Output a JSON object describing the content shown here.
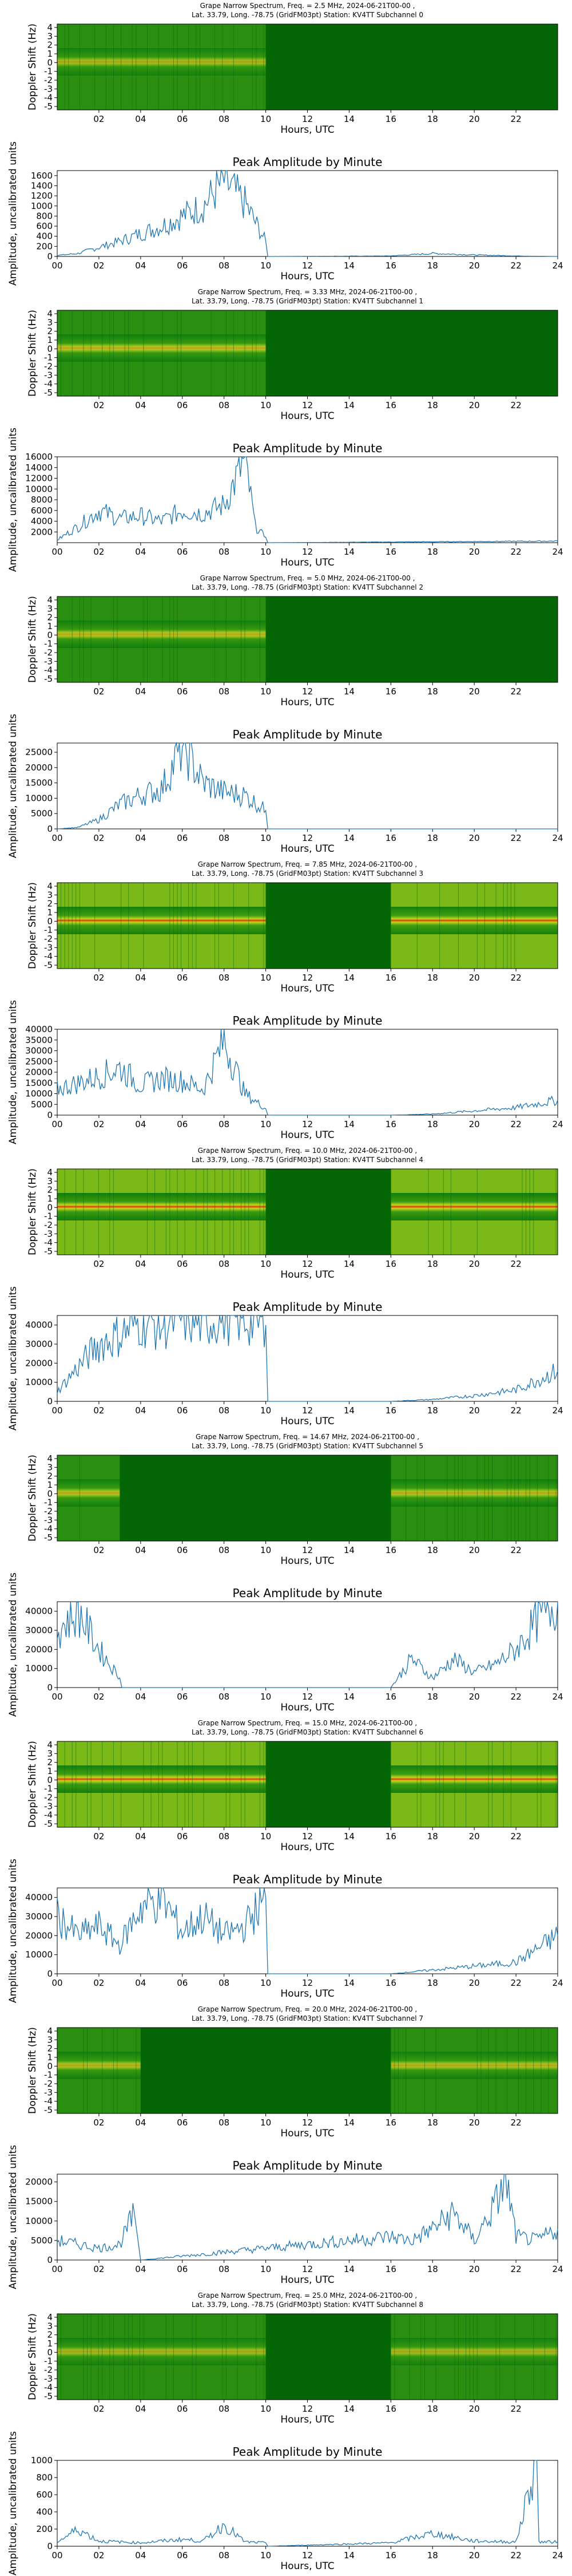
{
  "colors": {
    "line": "#1f77b4",
    "spec_bg": "#0b7a0b",
    "spec_dark": "#056605",
    "band": "#f0a020",
    "band_hot": "#e8340a"
  },
  "common": {
    "spec_title_line2": "Lat.  33.79, Long. -78.75 (GridFM03pt) Station: KV4TT Subchannel",
    "doppler_label": "Doppler Shift (Hz)",
    "hours_label": "Hours, UTC",
    "amp_title": "Peak Amplitude by Minute",
    "amp_ylabel": "Amplitude, uncalibrated units",
    "spec_xticks": [
      "02",
      "04",
      "06",
      "08",
      "10",
      "12",
      "14",
      "16",
      "18",
      "20",
      "22"
    ],
    "spec_yticks": [
      "4",
      "3",
      "2",
      "1",
      "0",
      "-1",
      "-2",
      "-3",
      "-4",
      "-5"
    ],
    "amp_xticks": [
      "00",
      "02",
      "04",
      "06",
      "08",
      "10",
      "12",
      "14",
      "16",
      "18",
      "20",
      "22",
      "24"
    ]
  },
  "chart_data": [
    {
      "type": "heatmap",
      "title": "Grape Narrow Spectrum, Freq. = 2.5 MHz, 2024-06-21T00-00 ,",
      "subchannel": "0",
      "band_intensity": 0.35,
      "dropout_hours": [
        10,
        24
      ],
      "ylim": [
        -5,
        5
      ],
      "xlim": [
        0,
        24
      ]
    },
    {
      "type": "line",
      "title": "Peak Amplitude by Minute",
      "ylim": [
        0,
        1700
      ],
      "yticks": [
        0,
        200,
        400,
        600,
        800,
        1000,
        1200,
        1400,
        1600
      ],
      "x": [
        0,
        1,
        2,
        3,
        4,
        5,
        6,
        7,
        8,
        9,
        10,
        10.1,
        16,
        18,
        20,
        22,
        24
      ],
      "values": [
        20,
        60,
        180,
        300,
        450,
        600,
        800,
        1000,
        1500,
        1050,
        300,
        0,
        10,
        60,
        30,
        10,
        0
      ]
    },
    {
      "type": "heatmap",
      "title": "Grape Narrow Spectrum, Freq. = 3.33 MHz, 2024-06-21T00-00 ,",
      "subchannel": "1",
      "band_intensity": 0.55,
      "dropout_hours": [
        10,
        24
      ],
      "ylim": [
        -5,
        5
      ],
      "xlim": [
        0,
        24
      ]
    },
    {
      "type": "line",
      "title": "Peak Amplitude by Minute",
      "ylim": [
        0,
        16000
      ],
      "yticks": [
        2000,
        4000,
        6000,
        8000,
        10000,
        12000,
        14000,
        16000
      ],
      "x": [
        0,
        1,
        2,
        3,
        4,
        5,
        6,
        7,
        8,
        9,
        9.5,
        10,
        10.1,
        24
      ],
      "values": [
        500,
        3000,
        6000,
        4500,
        5000,
        4000,
        6000,
        5500,
        7000,
        15500,
        3000,
        1000,
        0,
        300
      ]
    },
    {
      "type": "heatmap",
      "title": "Grape Narrow Spectrum, Freq. = 5.0 MHz, 2024-06-21T00-00 ,",
      "subchannel": "2",
      "band_intensity": 0.55,
      "dropout_hours": [
        10,
        24
      ],
      "ylim": [
        -5,
        5
      ],
      "xlim": [
        0,
        24
      ]
    },
    {
      "type": "line",
      "title": "Peak Amplitude by Minute",
      "ylim": [
        0,
        28000
      ],
      "yticks": [
        0,
        5000,
        10000,
        15000,
        20000,
        25000
      ],
      "x": [
        0,
        1,
        2,
        3,
        4,
        5,
        6,
        7,
        8,
        9,
        10,
        10.1,
        24
      ],
      "values": [
        0,
        500,
        3000,
        8000,
        11000,
        13000,
        27000,
        15000,
        12000,
        11000,
        6000,
        0,
        0
      ]
    },
    {
      "type": "heatmap",
      "title": "Grape Narrow Spectrum, Freq. = 7.85 MHz, 2024-06-21T00-00 ,",
      "subchannel": "3",
      "band_intensity": 0.8,
      "dropout_hours": [
        10,
        16
      ],
      "ylim": [
        -5,
        5
      ],
      "xlim": [
        0,
        24
      ]
    },
    {
      "type": "line",
      "title": "Peak Amplitude by Minute",
      "ylim": [
        0,
        40000
      ],
      "yticks": [
        0,
        5000,
        10000,
        15000,
        20000,
        25000,
        30000,
        35000,
        40000
      ],
      "x": [
        0,
        1,
        2,
        3,
        4,
        5,
        6,
        7,
        8,
        9,
        10,
        10.1,
        16,
        18,
        20,
        22,
        24
      ],
      "values": [
        12000,
        15000,
        18000,
        22000,
        14000,
        17000,
        16000,
        12000,
        35000,
        10000,
        3000,
        0,
        0,
        500,
        2000,
        3500,
        7000
      ]
    },
    {
      "type": "heatmap",
      "title": "Grape Narrow Spectrum, Freq. = 10.0 MHz, 2024-06-21T00-00 ,",
      "subchannel": "4",
      "band_intensity": 0.9,
      "dropout_hours": [
        10,
        16
      ],
      "ylim": [
        -5,
        5
      ],
      "xlim": [
        0,
        24
      ]
    },
    {
      "type": "line",
      "title": "Peak Amplitude by Minute",
      "ylim": [
        0,
        45000
      ],
      "yticks": [
        0,
        10000,
        20000,
        30000,
        40000
      ],
      "x": [
        0,
        1,
        2,
        3,
        4,
        5,
        6,
        7,
        8,
        9,
        10,
        10.1,
        16,
        18,
        20,
        22,
        24
      ],
      "values": [
        5000,
        18000,
        30000,
        35000,
        42000,
        40000,
        44000,
        41000,
        45000,
        43000,
        40000,
        0,
        0,
        1000,
        3000,
        6000,
        16000
      ]
    },
    {
      "type": "heatmap",
      "title": "Grape Narrow Spectrum, Freq. = 14.67 MHz, 2024-06-21T00-00 ,",
      "subchannel": "5",
      "band_intensity": 0.5,
      "dropout_hours": [
        3,
        16
      ],
      "ylim": [
        -5,
        5
      ],
      "xlim": [
        0,
        24
      ]
    },
    {
      "type": "line",
      "title": "Peak Amplitude by Minute",
      "ylim": [
        0,
        45000
      ],
      "yticks": [
        0,
        10000,
        20000,
        30000,
        40000
      ],
      "x": [
        0,
        1,
        2,
        3,
        3.1,
        16,
        17,
        18,
        19,
        20,
        21,
        22,
        23,
        24
      ],
      "values": [
        30000,
        40000,
        20000,
        5000,
        0,
        0,
        15000,
        5000,
        15000,
        8000,
        12000,
        20000,
        35000,
        45000
      ]
    },
    {
      "type": "heatmap",
      "title": "Grape Narrow Spectrum, Freq. = 15.0 MHz, 2024-06-21T00-00 ,",
      "subchannel": "6",
      "band_intensity": 0.85,
      "dropout_hours": [
        10,
        16
      ],
      "ylim": [
        -5,
        5
      ],
      "xlim": [
        0,
        24
      ]
    },
    {
      "type": "line",
      "title": "Peak Amplitude by Minute",
      "ylim": [
        0,
        45000
      ],
      "yticks": [
        0,
        10000,
        20000,
        30000,
        40000
      ],
      "x": [
        0,
        1,
        2,
        3,
        4,
        5,
        6,
        7,
        8,
        9,
        10,
        10.1,
        16,
        18,
        20,
        22,
        24
      ],
      "values": [
        30000,
        20000,
        25000,
        15000,
        35000,
        40000,
        22000,
        30000,
        20000,
        25000,
        40000,
        0,
        0,
        2000,
        4000,
        6000,
        20000
      ]
    },
    {
      "type": "heatmap",
      "title": "Grape Narrow Spectrum, Freq. = 20.0 MHz, 2024-06-21T00-00 ,",
      "subchannel": "7",
      "band_intensity": 0.45,
      "dropout_hours": [
        4,
        16
      ],
      "ylim": [
        -5,
        5
      ],
      "xlim": [
        0,
        24
      ]
    },
    {
      "type": "line",
      "title": "Peak Amplitude by Minute",
      "ylim": [
        0,
        22000
      ],
      "yticks": [
        0,
        5000,
        10000,
        15000,
        20000
      ],
      "x": [
        0,
        1,
        2,
        3,
        3.7,
        4,
        16,
        17,
        18,
        19,
        20,
        21,
        21.5,
        22,
        23,
        24
      ],
      "values": [
        5000,
        4000,
        3000,
        4000,
        12000,
        0,
        6000,
        5000,
        8000,
        12000,
        5000,
        14000,
        21000,
        6000,
        5000,
        8000
      ]
    },
    {
      "type": "heatmap",
      "title": "Grape Narrow Spectrum, Freq. = 25.0 MHz, 2024-06-21T00-00 ,",
      "subchannel": "8",
      "band_intensity": 0.3,
      "dropout_hours": [
        10,
        16
      ],
      "ylim": [
        -5,
        5
      ],
      "xlim": [
        0,
        24
      ]
    },
    {
      "type": "line",
      "title": "Peak Amplitude by Minute",
      "ylim": [
        0,
        1000
      ],
      "yticks": [
        0,
        200,
        400,
        600,
        800,
        1000
      ],
      "x": [
        0,
        1,
        2,
        3,
        4,
        5,
        6,
        7,
        8,
        9,
        10,
        10.1,
        16,
        18,
        20,
        22,
        23,
        23.1,
        24
      ],
      "values": [
        50,
        200,
        60,
        50,
        40,
        60,
        80,
        60,
        250,
        50,
        40,
        0,
        40,
        150,
        60,
        50,
        1000,
        50,
        50
      ]
    }
  ]
}
